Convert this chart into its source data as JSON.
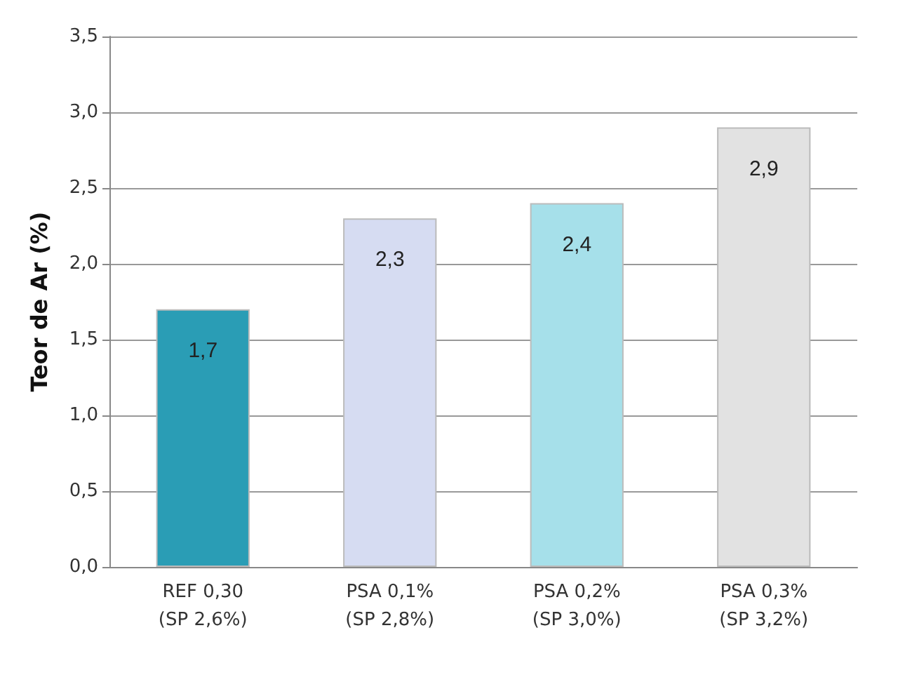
{
  "chart_data": {
    "type": "bar",
    "ylabel": "Teor de Ar (%)",
    "categories": [
      "REF 0,30\n(SP 2,6%)",
      "PSA 0,1%\n(SP 2,8%)",
      "PSA 0,2%\n(SP 3,0%)",
      "PSA 0,3%\n(SP 3,2%)"
    ],
    "values": [
      1.7,
      2.3,
      2.4,
      2.9
    ],
    "colors": [
      "#2a9db5",
      "#d6dcf2",
      "#a6e0ea",
      "#e2e2e2"
    ],
    "value_labels": [
      "1,7",
      "2,3",
      "2,4",
      "2,9"
    ],
    "ylim": [
      0,
      3.5
    ],
    "yticks": [
      {
        "value": 0,
        "label": "0,0"
      },
      {
        "value": 0.5,
        "label": "0,5"
      },
      {
        "value": 1,
        "label": "1,0"
      },
      {
        "value": 1.5,
        "label": "1,5"
      },
      {
        "value": 2,
        "label": "2,0"
      },
      {
        "value": 2.5,
        "label": "2,5"
      },
      {
        "value": 3,
        "label": "3,0"
      },
      {
        "value": 3.5,
        "label": "3,5"
      }
    ],
    "grid": "y"
  }
}
